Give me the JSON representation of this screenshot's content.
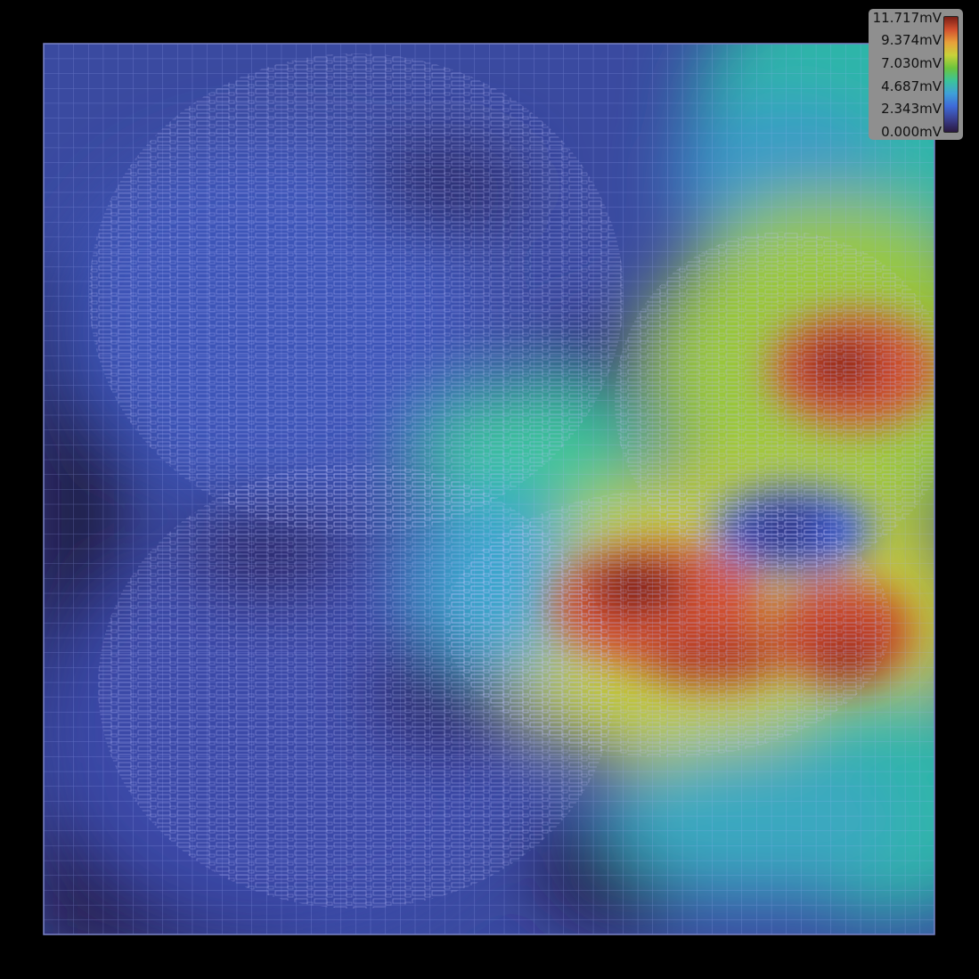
{
  "chart_data": {
    "type": "heatmap",
    "title": "",
    "unit": "mV",
    "value_range": [
      0.0,
      11.717
    ],
    "colormap": [
      "#2a1840",
      "#3a3f90",
      "#3f6ad8",
      "#3fa0d8",
      "#3bc49a",
      "#6cc43c",
      "#c8d23a",
      "#e8a03a",
      "#d2502e",
      "#7a1e16"
    ],
    "legend": {
      "placement": "top-right",
      "labels": [
        "11.717mV",
        "9.374mV",
        "7.030mV",
        "4.687mV",
        "2.343mV",
        "0.000mV"
      ]
    },
    "grid_overlay": true,
    "overlay_color": "#b8b8ff",
    "hotspots_mV": [
      {
        "region": "right-upper",
        "value": 11.7
      },
      {
        "region": "center-right-lower",
        "value": 11.5
      },
      {
        "region": "right-lower",
        "value": 10.5
      },
      {
        "region": "left-middle",
        "value": 0.0
      }
    ]
  }
}
